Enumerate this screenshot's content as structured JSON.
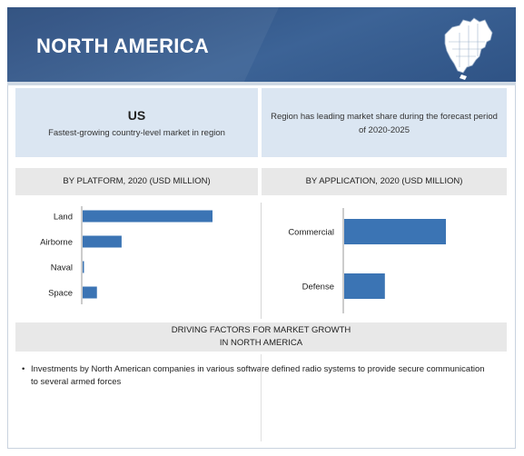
{
  "header": {
    "title": "NORTH AMERICA"
  },
  "highlights": {
    "us_title": "US",
    "us_subtitle": "Fastest-growing country-level market in region",
    "region_text": "Region has leading market share during the forecast period of 2020-2025"
  },
  "sections": {
    "platform_title": "BY PLATFORM, 2020 (USD MILLION)",
    "application_title": "BY APPLICATION, 2020 (USD MILLION)",
    "driving_title_line1": "DRIVING FACTORS FOR MARKET GROWTH",
    "driving_title_line2": "IN NORTH AMERICA"
  },
  "drivers": [
    "Investments by North American companies in various software defined radio systems to provide secure communication to several armed forces"
  ],
  "colors": {
    "bar": "#3b74b4",
    "header_bg": "#2f5385",
    "box_bg": "#dbe6f2",
    "title_bg": "#e8e8e8"
  },
  "chart_data": [
    {
      "type": "bar",
      "orientation": "horizontal",
      "title": "BY PLATFORM, 2020 (USD MILLION)",
      "categories": [
        "Land",
        "Airborne",
        "Naval",
        "Space"
      ],
      "values": [
        100,
        30,
        1,
        11
      ],
      "xlim": [
        0,
        100
      ]
    },
    {
      "type": "bar",
      "orientation": "horizontal",
      "title": "BY APPLICATION, 2020 (USD MILLION)",
      "categories": [
        "Commercial",
        "Defense"
      ],
      "values": [
        100,
        40
      ],
      "xlim": [
        0,
        100
      ]
    }
  ]
}
